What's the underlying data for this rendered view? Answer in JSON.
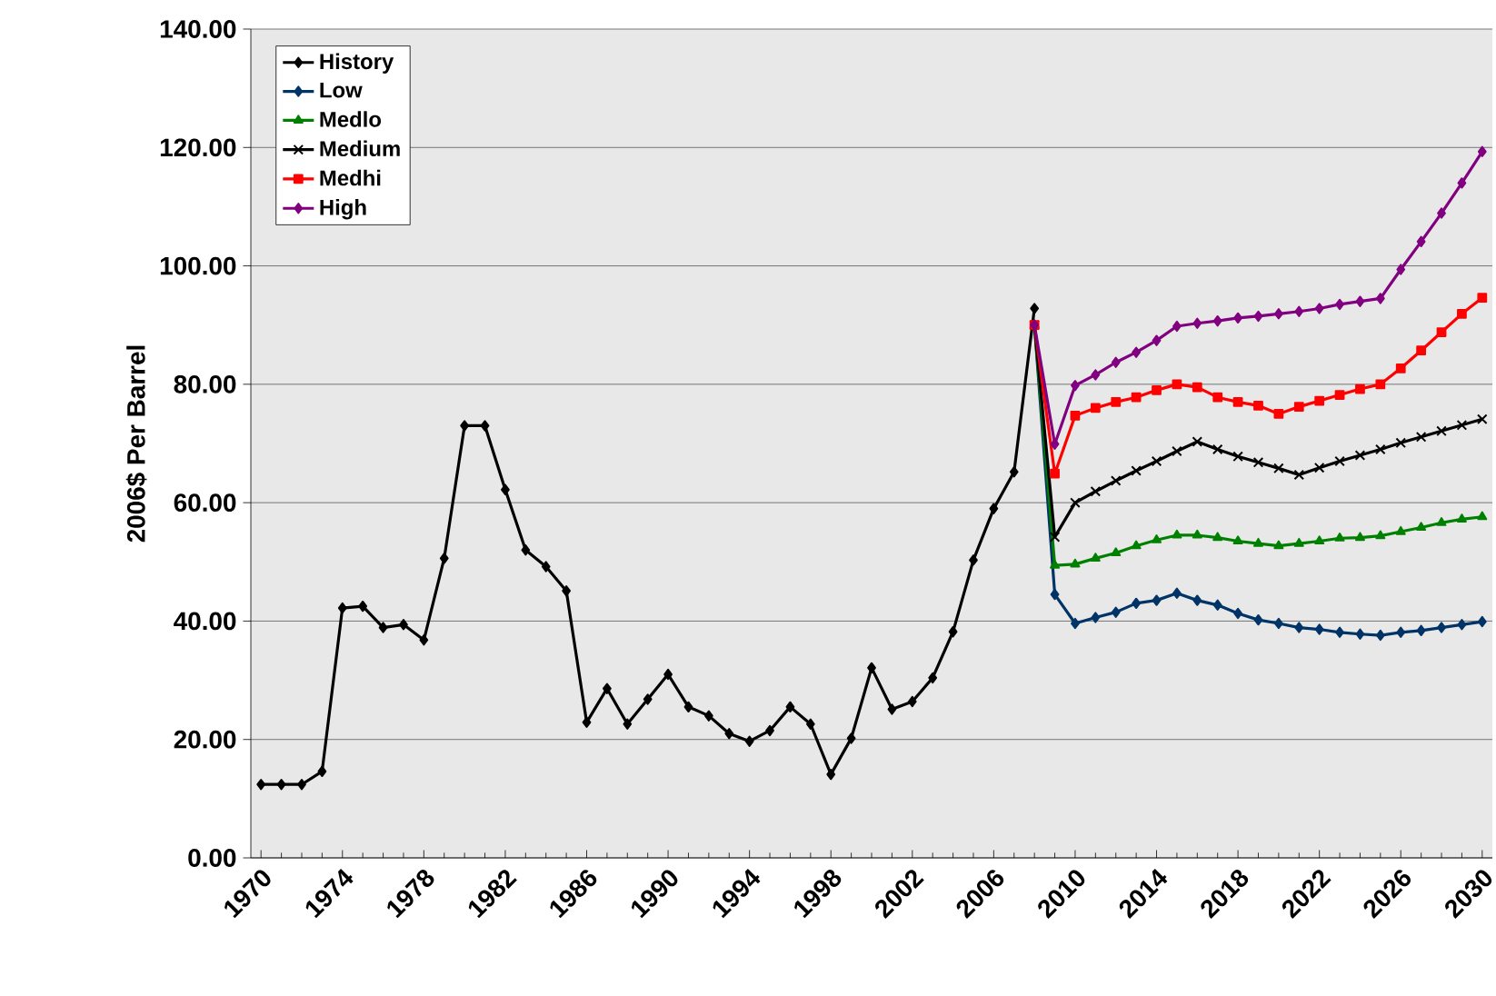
{
  "chart_data": {
    "type": "line",
    "ylabel": "2006$ Per Barrel",
    "xlim": [
      1969.5,
      2030.5
    ],
    "xticks": [
      1970,
      1974,
      1978,
      1982,
      1986,
      1990,
      1994,
      1998,
      2002,
      2006,
      2010,
      2014,
      2018,
      2022,
      2026,
      2030
    ],
    "ylim": [
      0,
      140
    ],
    "yticks": [
      {
        "value": 0,
        "label": "0.00"
      },
      {
        "value": 20,
        "label": "20.00"
      },
      {
        "value": 40,
        "label": "40.00"
      },
      {
        "value": 60,
        "label": "60.00"
      },
      {
        "value": 80,
        "label": "80.00"
      },
      {
        "value": 100,
        "label": "100.00"
      },
      {
        "value": 120,
        "label": "120.00"
      },
      {
        "value": 140,
        "label": "140.00"
      }
    ],
    "grid": "y",
    "legend": "top left",
    "series": [
      {
        "name": "History",
        "color": "#000000",
        "marker": "diamond",
        "x": [
          1970,
          1971,
          1972,
          1973,
          1974,
          1975,
          1976,
          1977,
          1978,
          1979,
          1980,
          1981,
          1982,
          1983,
          1984,
          1985,
          1986,
          1987,
          1988,
          1989,
          1990,
          1991,
          1992,
          1993,
          1994,
          1995,
          1996,
          1997,
          1998,
          1999,
          2000,
          2001,
          2002,
          2003,
          2004,
          2005,
          2006,
          2007,
          2008
        ],
        "values": [
          12.4,
          12.4,
          12.4,
          14.6,
          42.2,
          42.5,
          38.9,
          39.4,
          36.8,
          50.6,
          73.0,
          73.0,
          62.2,
          52.0,
          49.2,
          45.1,
          22.9,
          28.6,
          22.6,
          26.8,
          31.0,
          25.5,
          24.0,
          21.0,
          19.7,
          21.5,
          25.5,
          22.6,
          14.1,
          20.2,
          32.1,
          25.1,
          26.4,
          30.4,
          38.2,
          50.3,
          59.0,
          65.2,
          92.8
        ]
      },
      {
        "name": "Low",
        "color": "#003366",
        "marker": "diamond",
        "x": [
          2008,
          2009,
          2010,
          2011,
          2012,
          2013,
          2014,
          2015,
          2016,
          2017,
          2018,
          2019,
          2020,
          2021,
          2022,
          2023,
          2024,
          2025,
          2026,
          2027,
          2028,
          2029,
          2030
        ],
        "values": [
          90.0,
          44.5,
          39.6,
          40.6,
          41.5,
          43.0,
          43.5,
          44.7,
          43.5,
          42.7,
          41.3,
          40.2,
          39.6,
          38.9,
          38.6,
          38.1,
          37.8,
          37.6,
          38.1,
          38.4,
          38.9,
          39.4,
          39.9
        ]
      },
      {
        "name": "Medlo",
        "color": "#008000",
        "marker": "triangle",
        "x": [
          2008,
          2009,
          2010,
          2011,
          2012,
          2013,
          2014,
          2015,
          2016,
          2017,
          2018,
          2019,
          2020,
          2021,
          2022,
          2023,
          2024,
          2025,
          2026,
          2027,
          2028,
          2029,
          2030
        ],
        "values": [
          90.0,
          49.4,
          49.6,
          50.6,
          51.5,
          52.7,
          53.7,
          54.5,
          54.5,
          54.1,
          53.5,
          53.1,
          52.7,
          53.1,
          53.5,
          54.0,
          54.1,
          54.4,
          55.1,
          55.8,
          56.6,
          57.2,
          57.6
        ]
      },
      {
        "name": "Medium",
        "color": "#000000",
        "marker": "cross",
        "x": [
          2008,
          2009,
          2010,
          2011,
          2012,
          2013,
          2014,
          2015,
          2016,
          2017,
          2018,
          2019,
          2020,
          2021,
          2022,
          2023,
          2024,
          2025,
          2026,
          2027,
          2028,
          2029,
          2030
        ],
        "values": [
          90.0,
          54.2,
          60.0,
          61.9,
          63.7,
          65.4,
          67.0,
          68.7,
          70.3,
          69.0,
          67.8,
          66.8,
          65.8,
          64.7,
          65.9,
          67.0,
          68.0,
          69.0,
          70.1,
          71.1,
          72.1,
          73.1,
          74.1
        ]
      },
      {
        "name": "Medhi",
        "color": "#ff0000",
        "marker": "square",
        "x": [
          2008,
          2009,
          2010,
          2011,
          2012,
          2013,
          2014,
          2015,
          2016,
          2017,
          2018,
          2019,
          2020,
          2021,
          2022,
          2023,
          2024,
          2025,
          2026,
          2027,
          2028,
          2029,
          2030
        ],
        "values": [
          90.0,
          64.9,
          74.7,
          76.0,
          77.0,
          77.8,
          79.0,
          80.0,
          79.5,
          77.8,
          77.0,
          76.4,
          75.0,
          76.2,
          77.2,
          78.2,
          79.2,
          80.0,
          82.7,
          85.7,
          88.8,
          91.9,
          94.6
        ]
      },
      {
        "name": "High",
        "color": "#800080",
        "marker": "diamond",
        "x": [
          2008,
          2009,
          2010,
          2011,
          2012,
          2013,
          2014,
          2015,
          2016,
          2017,
          2018,
          2019,
          2020,
          2021,
          2022,
          2023,
          2024,
          2025,
          2026,
          2027,
          2028,
          2029,
          2030
        ],
        "values": [
          90.0,
          69.9,
          79.8,
          81.6,
          83.7,
          85.4,
          87.4,
          89.8,
          90.3,
          90.7,
          91.2,
          91.5,
          91.9,
          92.3,
          92.8,
          93.5,
          94.0,
          94.5,
          99.4,
          104.1,
          108.9,
          114.0,
          119.3
        ]
      }
    ]
  }
}
